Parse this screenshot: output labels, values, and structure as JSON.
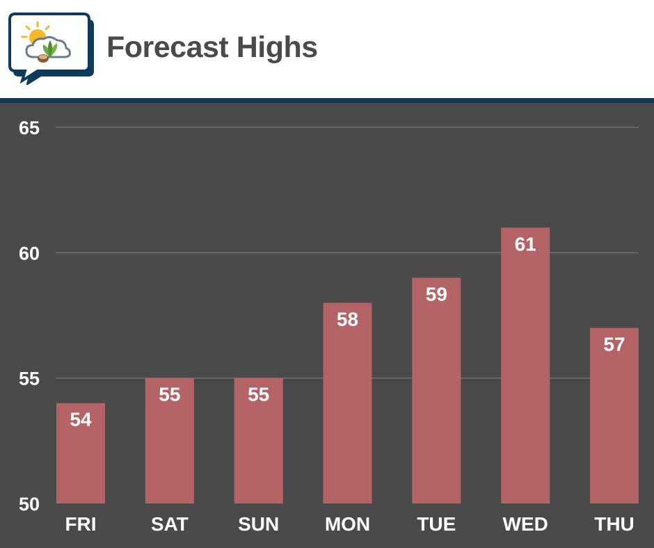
{
  "header": {
    "title": "Forecast Highs",
    "logo_icon": "weather-sun-cloud-leaf-icon",
    "rule_color": "#0f3b5a"
  },
  "chart_data": {
    "type": "bar",
    "title": "Forecast Highs",
    "xlabel": "",
    "ylabel": "",
    "categories": [
      "FRI",
      "SAT",
      "SUN",
      "MON",
      "TUE",
      "WED",
      "THU"
    ],
    "values": [
      54,
      55,
      55,
      58,
      59,
      61,
      57
    ],
    "ylim": [
      50,
      65
    ],
    "yticks": [
      50,
      55,
      60,
      65
    ],
    "grid": true,
    "legend": "none",
    "bar_color": "#b46466",
    "background_color": "#4a4a4a",
    "gridline_color": "#6e6e6e"
  }
}
